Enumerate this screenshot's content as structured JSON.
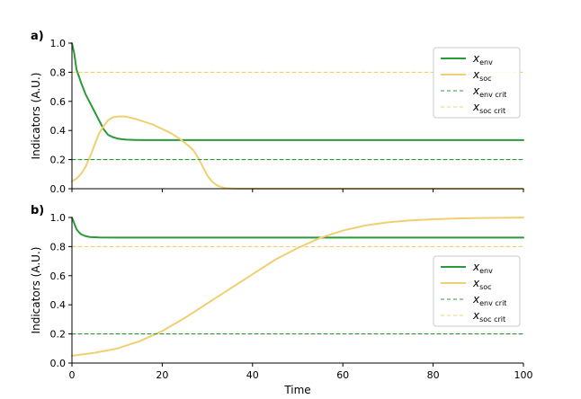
{
  "colors": {
    "env": "#2a9a38",
    "soc": "#f0cf72",
    "axis": "#000000",
    "legend_border": "#cccccc"
  },
  "chart_data": [
    {
      "panel": "a)",
      "type": "line",
      "xlabel": "",
      "ylabel": "Indicators (A.U.)",
      "xlim": [
        0,
        100
      ],
      "ylim": [
        0,
        1.0
      ],
      "x_ticks": [
        0,
        20,
        40,
        60,
        80,
        100
      ],
      "x_tick_labels_shown": false,
      "y_ticks": [
        "0.0",
        "0.2",
        "0.4",
        "0.6",
        "0.8",
        "1.0"
      ],
      "grid": false,
      "legend_position": "top-right",
      "series": [
        {
          "key": "env",
          "name": "x",
          "sub": "env",
          "style": "solid",
          "points": [
            [
              0,
              1.0
            ],
            [
              0.5,
              0.93
            ],
            [
              1,
              0.82
            ],
            [
              2,
              0.73
            ],
            [
              3,
              0.65
            ],
            [
              4,
              0.59
            ],
            [
              5,
              0.53
            ],
            [
              6,
              0.47
            ],
            [
              7,
              0.41
            ],
            [
              8,
              0.37
            ],
            [
              9,
              0.355
            ],
            [
              10,
              0.345
            ],
            [
              11,
              0.34
            ],
            [
              12,
              0.337
            ],
            [
              14,
              0.335
            ],
            [
              16,
              0.334
            ],
            [
              20,
              0.334
            ],
            [
              30,
              0.334
            ],
            [
              50,
              0.334
            ],
            [
              70,
              0.334
            ],
            [
              100,
              0.334
            ]
          ]
        },
        {
          "key": "soc",
          "name": "x",
          "sub": "soc",
          "style": "solid",
          "points": [
            [
              0,
              0.05
            ],
            [
              1,
              0.07
            ],
            [
              2,
              0.1
            ],
            [
              3,
              0.15
            ],
            [
              4,
              0.22
            ],
            [
              5,
              0.3
            ],
            [
              6,
              0.38
            ],
            [
              7,
              0.43
            ],
            [
              8,
              0.47
            ],
            [
              9,
              0.49
            ],
            [
              10,
              0.495
            ],
            [
              11,
              0.497
            ],
            [
              12,
              0.495
            ],
            [
              14,
              0.48
            ],
            [
              16,
              0.46
            ],
            [
              18,
              0.44
            ],
            [
              20,
              0.41
            ],
            [
              22,
              0.38
            ],
            [
              24,
              0.34
            ],
            [
              26,
              0.29
            ],
            [
              27,
              0.26
            ],
            [
              28,
              0.21
            ],
            [
              29,
              0.15
            ],
            [
              30,
              0.09
            ],
            [
              31,
              0.05
            ],
            [
              32,
              0.025
            ],
            [
              33,
              0.012
            ],
            [
              34,
              0.005
            ],
            [
              35,
              0.002
            ],
            [
              37,
              0.0
            ],
            [
              40,
              0.0
            ],
            [
              60,
              0.0
            ],
            [
              100,
              0.0
            ]
          ]
        },
        {
          "key": "env_crit",
          "name": "x",
          "sub": "env crit",
          "style": "dashed",
          "points": [
            [
              0,
              0.2
            ],
            [
              100,
              0.2
            ]
          ]
        },
        {
          "key": "soc_crit",
          "name": "x",
          "sub": "soc crit",
          "style": "dashed",
          "points": [
            [
              0,
              0.8
            ],
            [
              100,
              0.8
            ]
          ]
        }
      ]
    },
    {
      "panel": "b)",
      "type": "line",
      "xlabel": "Time",
      "ylabel": "Indicators (A.U.)",
      "xlim": [
        0,
        100
      ],
      "ylim": [
        0,
        1.0
      ],
      "x_ticks": [
        0,
        20,
        40,
        60,
        80,
        100
      ],
      "x_tick_labels_shown": true,
      "y_ticks": [
        "0.0",
        "0.2",
        "0.4",
        "0.6",
        "0.8",
        "1.0"
      ],
      "grid": false,
      "legend_position": "bottom-right",
      "series": [
        {
          "key": "env",
          "name": "x",
          "sub": "env",
          "style": "solid",
          "points": [
            [
              0,
              1.0
            ],
            [
              0.5,
              0.96
            ],
            [
              1,
              0.92
            ],
            [
              1.5,
              0.9
            ],
            [
              2,
              0.885
            ],
            [
              3,
              0.872
            ],
            [
              4,
              0.866
            ],
            [
              6,
              0.863
            ],
            [
              10,
              0.862
            ],
            [
              20,
              0.862
            ],
            [
              40,
              0.862
            ],
            [
              60,
              0.862
            ],
            [
              80,
              0.862
            ],
            [
              100,
              0.862
            ]
          ]
        },
        {
          "key": "soc",
          "name": "x",
          "sub": "soc",
          "style": "solid",
          "points": [
            [
              0,
              0.05
            ],
            [
              5,
              0.07
            ],
            [
              10,
              0.1
            ],
            [
              15,
              0.15
            ],
            [
              20,
              0.22
            ],
            [
              25,
              0.31
            ],
            [
              30,
              0.41
            ],
            [
              35,
              0.51
            ],
            [
              40,
              0.61
            ],
            [
              45,
              0.71
            ],
            [
              50,
              0.79
            ],
            [
              55,
              0.86
            ],
            [
              60,
              0.91
            ],
            [
              65,
              0.945
            ],
            [
              70,
              0.967
            ],
            [
              75,
              0.98
            ],
            [
              80,
              0.988
            ],
            [
              85,
              0.993
            ],
            [
              90,
              0.996
            ],
            [
              95,
              0.998
            ],
            [
              100,
              0.999
            ]
          ]
        },
        {
          "key": "env_crit",
          "name": "x",
          "sub": "env crit",
          "style": "dashed",
          "points": [
            [
              0,
              0.2
            ],
            [
              100,
              0.2
            ]
          ]
        },
        {
          "key": "soc_crit",
          "name": "x",
          "sub": "soc crit",
          "style": "dashed",
          "points": [
            [
              0,
              0.8
            ],
            [
              100,
              0.8
            ]
          ]
        }
      ]
    }
  ]
}
